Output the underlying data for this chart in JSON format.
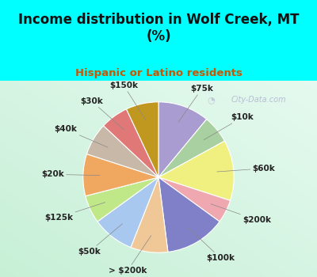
{
  "title": "Income distribution in Wolf Creek, MT\n(%)",
  "subtitle": "Hispanic or Latino residents",
  "title_color": "#111111",
  "subtitle_color": "#cc5500",
  "bg_cyan": "#00ffff",
  "watermark": "City-Data.com",
  "labels": [
    "$75k",
    "$10k",
    "$60k",
    "$200k",
    "$100k",
    "> $200k",
    "$50k",
    "$125k",
    "$20k",
    "$40k",
    "$30k",
    "$150k"
  ],
  "values": [
    11,
    6,
    13,
    5,
    13,
    8,
    9,
    6,
    9,
    7,
    6,
    7
  ],
  "colors": [
    "#a89cd0",
    "#a8d0a0",
    "#f0f080",
    "#f0a8b0",
    "#8080c8",
    "#f0c898",
    "#a8c8f0",
    "#c0e888",
    "#f0a860",
    "#c8b8a8",
    "#e07878",
    "#c09820"
  ],
  "label_fontsize": 7.5,
  "label_color": "#222222"
}
